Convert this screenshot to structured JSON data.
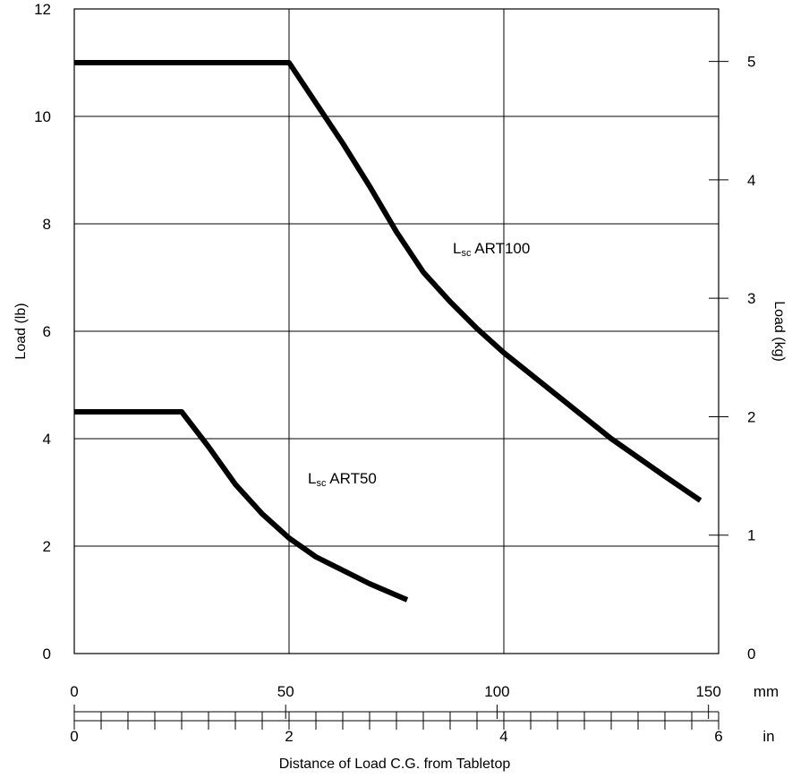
{
  "chart_data": {
    "type": "line",
    "ylabel": "Load (lb)",
    "y2label": "Load (kg)",
    "xlabel": "Distance of Load C.G. from Tabletop",
    "x_unit_mm": "mm",
    "x_unit_in": "in",
    "xlim_in": [
      0,
      6
    ],
    "ylim": [
      0,
      12
    ],
    "y2lim": [
      0,
      5.443
    ],
    "grid": true,
    "y_ticks": [
      0,
      2,
      4,
      6,
      8,
      10,
      12
    ],
    "y2_ticks": [
      0,
      1,
      2,
      3,
      4,
      5
    ],
    "x_ticks_mm": [
      0,
      50,
      100,
      150
    ],
    "x_ticks_in": [
      0,
      2,
      4,
      6
    ],
    "y_tick_labels": [
      "0",
      "2",
      "4",
      "6",
      "8",
      "10",
      "12"
    ],
    "y2_tick_labels": [
      "0",
      "1",
      "2",
      "3",
      "4",
      "5"
    ],
    "x_tick_labels_mm": [
      "0",
      "50",
      "100",
      "150"
    ],
    "x_tick_labels_in": [
      "0",
      "2",
      "4",
      "6"
    ],
    "series": [
      {
        "name": "Lsc ART100",
        "name_main": "L",
        "name_sub": "sc",
        "name_rest": " ART100",
        "x_in": [
          0,
          2.0,
          2.25,
          2.5,
          2.75,
          3.0,
          3.25,
          3.5,
          3.75,
          4.0,
          4.25,
          4.5,
          4.75,
          5.0,
          5.25,
          5.5,
          5.83
        ],
        "y_lb": [
          11.0,
          11.0,
          10.25,
          9.5,
          8.7,
          7.85,
          7.1,
          6.55,
          6.05,
          5.6,
          5.2,
          4.8,
          4.4,
          4.0,
          3.65,
          3.3,
          2.85
        ]
      },
      {
        "name": "Lsc ART50",
        "name_main": "L",
        "name_sub": "sc",
        "name_rest": " ART50",
        "x_in": [
          0,
          1.0,
          1.25,
          1.5,
          1.75,
          2.0,
          2.25,
          2.5,
          2.75,
          3.1
        ],
        "y_lb": [
          4.5,
          4.5,
          3.85,
          3.15,
          2.6,
          2.15,
          1.8,
          1.55,
          1.3,
          1.0
        ]
      }
    ]
  }
}
